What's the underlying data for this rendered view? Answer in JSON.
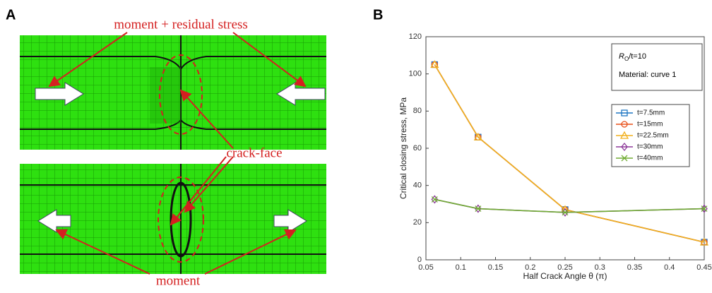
{
  "panel_labels": [
    "A",
    "B"
  ],
  "panel_a": {
    "top_label": "moment + residual stress",
    "middle_label": "crack-face",
    "bottom_label": "moment"
  },
  "chart_data": {
    "type": "line",
    "x_label": "Half Crack Angle θ (π)",
    "y_label": "Critical closing stress, MPa",
    "annotation": {
      "symbol": "R",
      "subscript": "O",
      "rest": "/t=10",
      "line2": "Material: curve 1"
    },
    "x": [
      0.0625,
      0.125,
      0.25,
      0.45
    ],
    "series": [
      {
        "name": "t=7.5mm",
        "color": "#1f77c4",
        "marker": "square",
        "values": [
          105,
          66,
          27,
          9.5
        ]
      },
      {
        "name": "t=15mm",
        "color": "#e8501a",
        "marker": "circle",
        "values": [
          105,
          66,
          27,
          9.5
        ]
      },
      {
        "name": "t=22.5mm",
        "color": "#f2b01e",
        "marker": "triangle",
        "values": [
          105,
          66,
          27,
          9.5
        ]
      },
      {
        "name": "t=30mm",
        "color": "#8e3a9a",
        "marker": "diamond",
        "values": [
          32.5,
          27.5,
          25.5,
          27.5
        ]
      },
      {
        "name": "t=40mm",
        "color": "#70ac34",
        "marker": "x",
        "values": [
          32.5,
          27.5,
          25.5,
          27.5
        ]
      }
    ],
    "xlim": [
      0.05,
      0.45
    ],
    "xticks": [
      0.05,
      0.1,
      0.15,
      0.2,
      0.25,
      0.3,
      0.35,
      0.4,
      0.45
    ],
    "ylim": [
      0,
      120
    ],
    "yticks": [
      0,
      20,
      40,
      60,
      80,
      100,
      120
    ],
    "grid": false,
    "legend": "right"
  }
}
